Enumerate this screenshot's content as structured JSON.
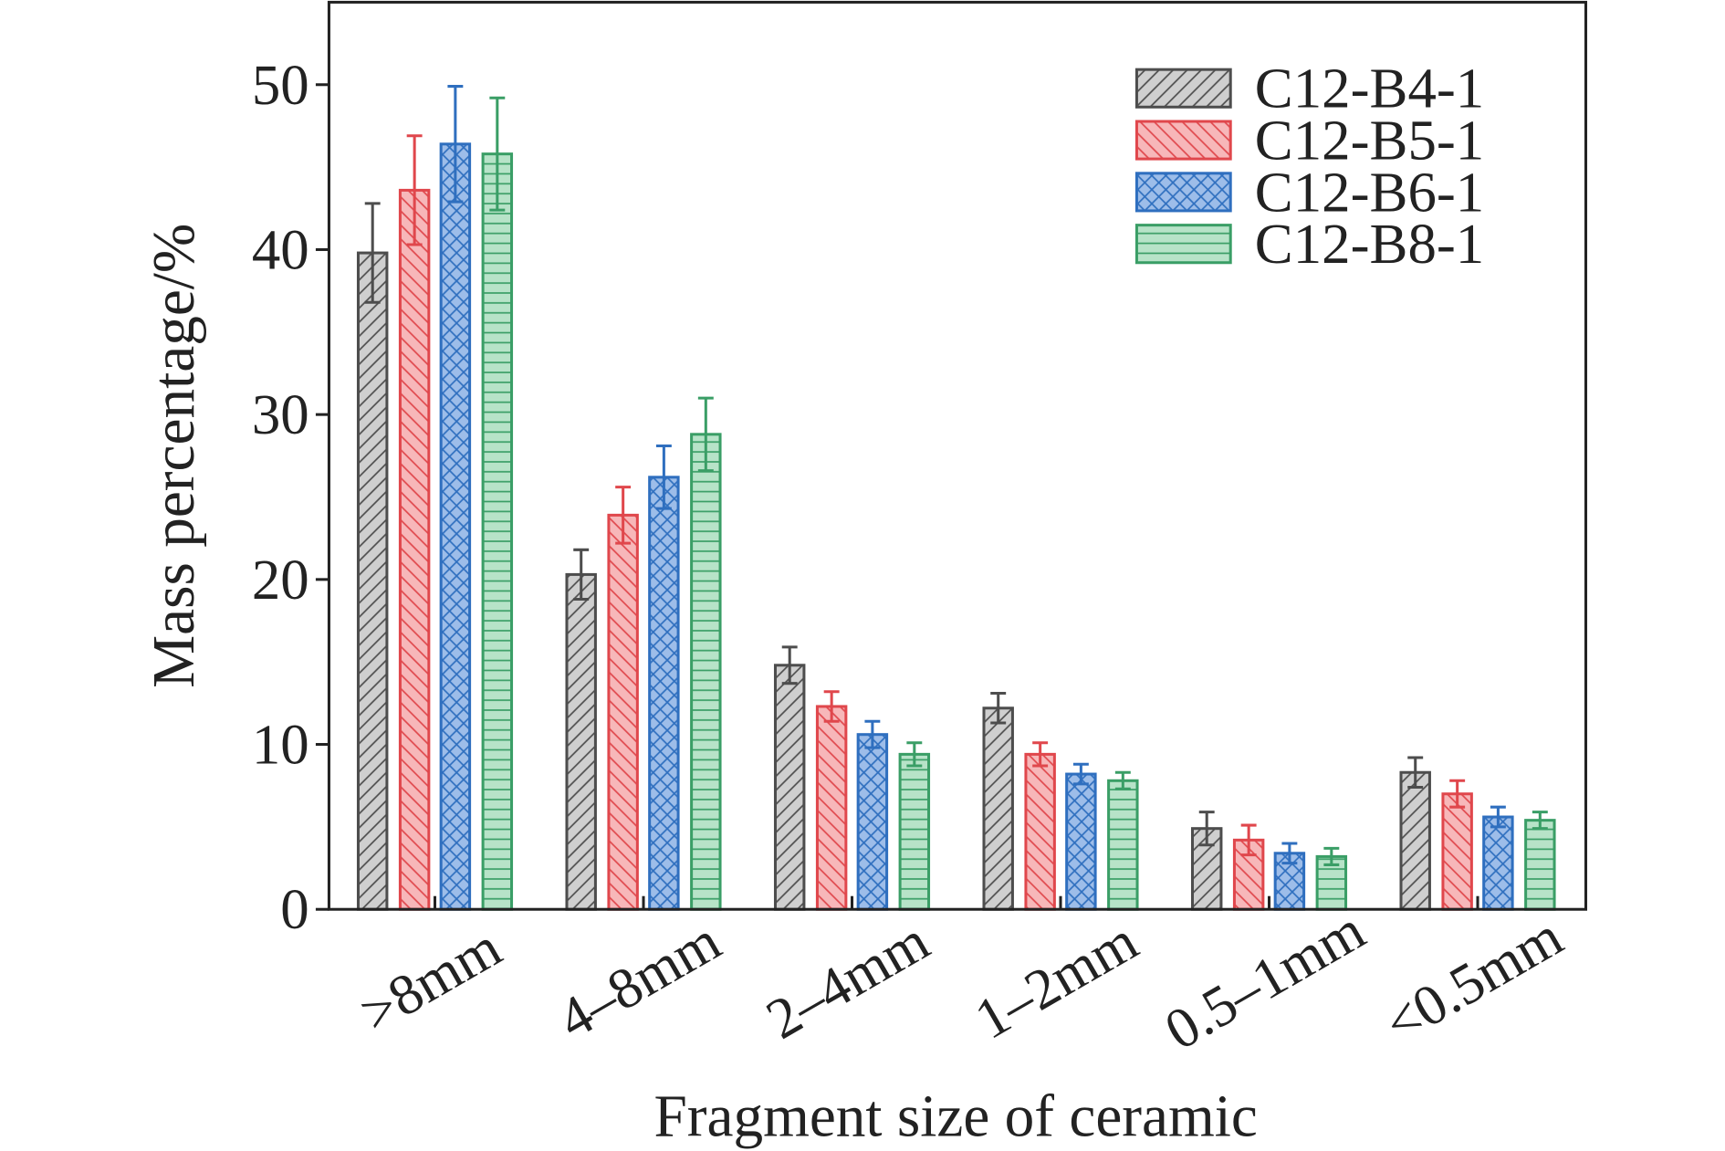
{
  "chart_data": {
    "type": "bar",
    "categories": [
      ">8mm",
      "4–8mm",
      "2–4mm",
      "1–2mm",
      "0.5–1mm",
      "<0.5mm"
    ],
    "series": [
      {
        "name": "C12-B4-1",
        "values": [
          39.8,
          20.3,
          14.8,
          12.2,
          4.9,
          8.3
        ],
        "errors": [
          3.0,
          1.5,
          1.1,
          0.9,
          1.0,
          0.9
        ],
        "fill": "#cfcfcf",
        "edge": "#4d4d4d",
        "hatch": "diagonal"
      },
      {
        "name": "C12-B5-1",
        "values": [
          43.6,
          23.9,
          12.3,
          9.4,
          4.2,
          7.0
        ],
        "errors": [
          3.3,
          1.7,
          0.9,
          0.7,
          0.9,
          0.8
        ],
        "fill": "#f7b7b9",
        "edge": "#e0474c",
        "hatch": "back-diagonal"
      },
      {
        "name": "C12-B6-1",
        "values": [
          46.4,
          26.2,
          10.6,
          8.2,
          3.4,
          5.6
        ],
        "errors": [
          3.5,
          1.9,
          0.8,
          0.6,
          0.6,
          0.6
        ],
        "fill": "#9dbde9",
        "edge": "#2f6fbf",
        "hatch": "crosshatch"
      },
      {
        "name": "C12-B8-1",
        "values": [
          45.8,
          28.8,
          9.4,
          7.8,
          3.2,
          5.4
        ],
        "errors": [
          3.4,
          2.2,
          0.7,
          0.5,
          0.5,
          0.5
        ],
        "fill": "#b7e3c8",
        "edge": "#3a9e66",
        "hatch": "horizontal"
      }
    ],
    "xlabel": "Fragment size of ceramic",
    "ylabel": "Mass percentage/%",
    "ylim": [
      0,
      55
    ],
    "yticks": [
      0,
      10,
      20,
      30,
      40,
      50
    ],
    "legend_position": "top-right",
    "grid": false
  }
}
